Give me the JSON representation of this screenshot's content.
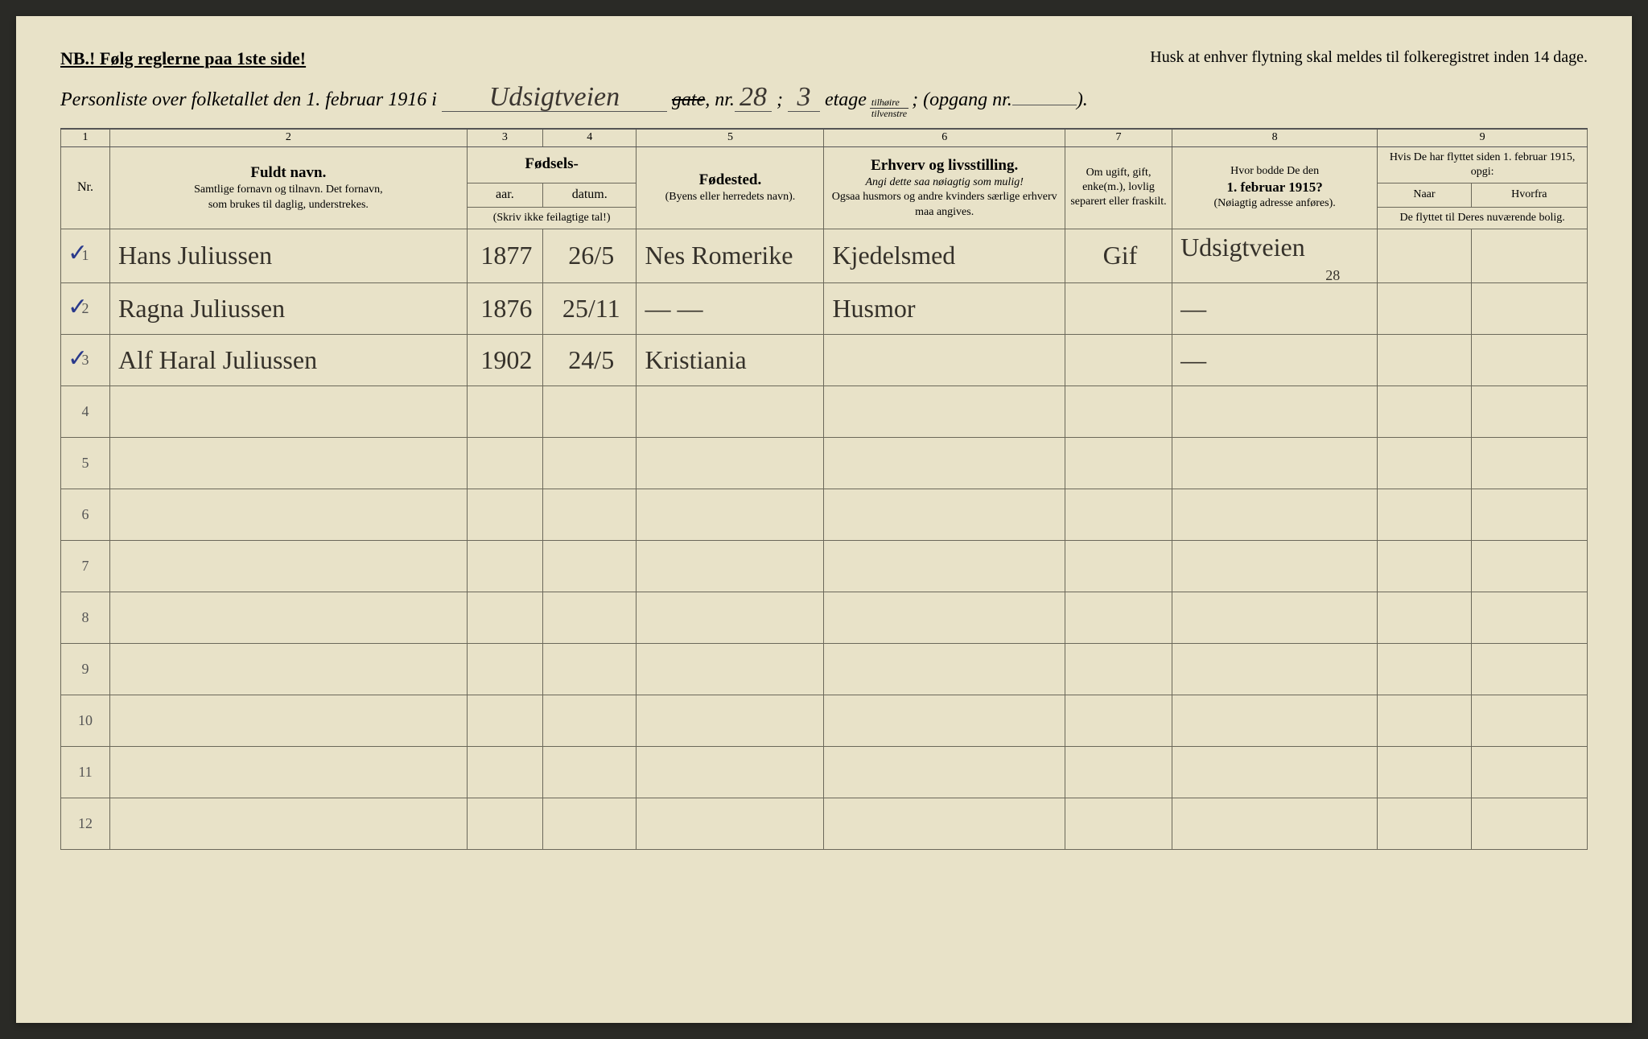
{
  "header": {
    "nb": "NB.! Følg reglerne paa 1ste side!",
    "reminder": "Husk at enhver flytning skal meldes til folkeregistret inden 14 dage.",
    "title_prefix": "Personliste over folketallet den 1. februar 1916 i",
    "street": "Udsigtveien",
    "gate_label": "gate",
    "nr_label": ", nr.",
    "nr_value": "28",
    "sep": ";",
    "etage_value": "3",
    "etage_label": "etage",
    "frac_top": "tilhøire",
    "frac_bot": "tilvenstre",
    "opgang_label": "; (opgang nr.",
    "opgang_value": "",
    "close": ")."
  },
  "columns": {
    "c1": "1",
    "c2": "2",
    "c3": "3",
    "c4": "4",
    "c5": "5",
    "c6": "6",
    "c7": "7",
    "c8": "8",
    "c9": "9",
    "nr": "Nr.",
    "name_main": "Fuldt navn.",
    "name_sub1": "Samtlige fornavn og tilnavn. Det fornavn,",
    "name_sub2": "som brukes til daglig, understrekes.",
    "fodsels": "Fødsels-",
    "aar": "aar.",
    "datum": "datum.",
    "aar_note": "(Skriv ikke feilagtige tal!)",
    "fodested": "Fødested.",
    "fodested_sub": "(Byens eller herredets navn).",
    "erhverv": "Erhverv og livsstilling.",
    "erhverv_sub1": "Angi dette saa nøiagtig som mulig!",
    "erhverv_sub2": "Ogsaa husmors og andre kvinders særlige erhverv maa angives.",
    "ugift": "Om ugift, gift, enke(m.), lovlig separert eller fraskilt.",
    "bodde": "Hvor bodde De den",
    "bodde_date": "1. februar 1915?",
    "bodde_sub": "(Nøiagtig adresse anføres).",
    "flyttet": "Hvis De har flyttet siden 1. februar 1915, opgi:",
    "naar": "Naar",
    "hvorfra": "Hvorfra",
    "flyttet_sub": "De flyttet til Deres nuværende bolig."
  },
  "rows": [
    {
      "nr": "1",
      "check": "✓",
      "name": "Hans Juliussen",
      "aar": "1877",
      "datum": "26/5",
      "fodested": "Nes Romerike",
      "erhverv": "Kjedelsmed",
      "ugift": "Gif",
      "bodde": "Udsigtveien",
      "bodde2": "28",
      "naar": "",
      "hvorfra": ""
    },
    {
      "nr": "2",
      "check": "✓",
      "name": "Ragna Juliussen",
      "aar": "1876",
      "datum": "25/11",
      "fodested": "— —",
      "erhverv": "Husmor",
      "ugift": "",
      "bodde": "—",
      "bodde2": "",
      "naar": "",
      "hvorfra": ""
    },
    {
      "nr": "3",
      "check": "✓",
      "name": "Alf Haral Juliussen",
      "aar": "1902",
      "datum": "24/5",
      "fodested": "Kristiania",
      "erhverv": "",
      "ugift": "",
      "bodde": "—",
      "bodde2": "",
      "naar": "",
      "hvorfra": ""
    },
    {
      "nr": "4"
    },
    {
      "nr": "5"
    },
    {
      "nr": "6"
    },
    {
      "nr": "7"
    },
    {
      "nr": "8"
    },
    {
      "nr": "9"
    },
    {
      "nr": "10"
    },
    {
      "nr": "11"
    },
    {
      "nr": "12"
    }
  ],
  "colors": {
    "paper": "#e8e2c8",
    "ink": "#2e2a24",
    "rule": "#6b685a",
    "check": "#2a3a8c"
  }
}
